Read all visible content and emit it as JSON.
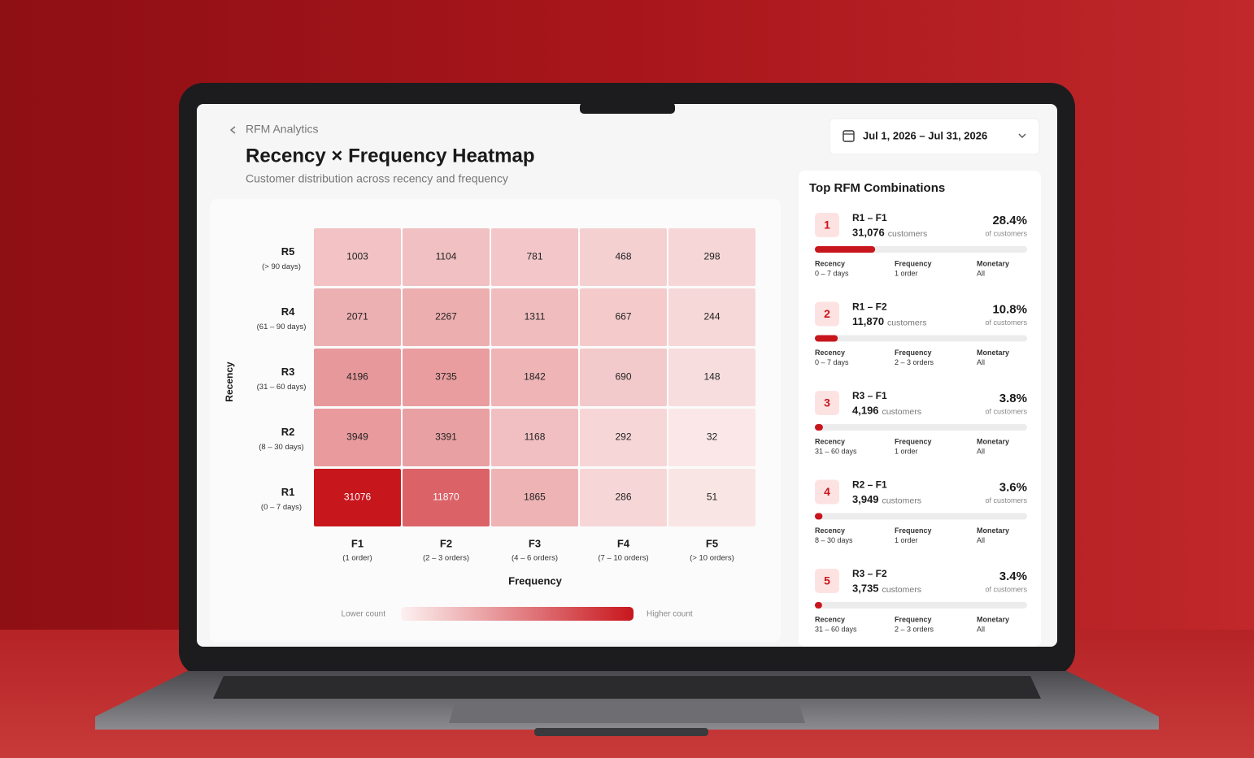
{
  "breadcrumb": "RFM Analytics",
  "date_range": "Jul 1, 2026 – Jul 31, 2026",
  "chart_data": {
    "type": "heatmap",
    "title": "Recency × Frequency Heatmap",
    "subtitle": "Customer distribution across recency and frequency",
    "x_label": "Frequency",
    "y_label": "Recency",
    "x_categories": [
      "F1",
      "F2",
      "F3",
      "F4",
      "F5"
    ],
    "x_sublabels": [
      "(1 order)",
      "(2 – 3 orders)",
      "(4 – 6 orders)",
      "(7 – 10 orders)",
      "(> 10 orders)"
    ],
    "y_categories": [
      "R5",
      "R4",
      "R3",
      "R2",
      "R1"
    ],
    "y_sublabels": [
      "(> 90 days)",
      "(61 – 90 days)",
      "(31 – 60 days)",
      "(8 – 30 days)",
      "(0 – 7 days)"
    ],
    "values": [
      [
        1003,
        1104,
        781,
        468,
        298
      ],
      [
        2071,
        2267,
        1311,
        667,
        244
      ],
      [
        4196,
        3735,
        1842,
        690,
        148
      ],
      [
        3949,
        3391,
        1168,
        292,
        32
      ],
      [
        31076,
        11870,
        1865,
        286,
        51
      ]
    ],
    "color": "#c8161d",
    "low_color": "#fdf1f1",
    "legend_low": "Lower count",
    "legend_high": "Higher count"
  },
  "top_combinations": {
    "title": "Top RFM Combinations",
    "items": [
      {
        "rank": 1,
        "name": "R1 – F1",
        "customers": "31,076",
        "customers_unit": "customers",
        "share": 28.4,
        "share_label": "28.4%",
        "share_note": "of customers",
        "recency_label": "Recency",
        "recency": "0 – 7 days",
        "frequency_label": "Frequency",
        "frequency": "1 order",
        "monetary_label": "Monetary",
        "monetary": "All"
      },
      {
        "rank": 2,
        "name": "R1 – F2",
        "customers": "11,870",
        "customers_unit": "customers",
        "share": 10.8,
        "share_label": "10.8%",
        "share_note": "of customers",
        "recency_label": "Recency",
        "recency": "0 – 7 days",
        "frequency_label": "Frequency",
        "frequency": "2 – 3 orders",
        "monetary_label": "Monetary",
        "monetary": "All"
      },
      {
        "rank": 3,
        "name": "R3 – F1",
        "customers": "4,196",
        "customers_unit": "customers",
        "share": 3.8,
        "share_label": "3.8%",
        "share_note": "of customers",
        "recency_label": "Recency",
        "recency": "31 – 60 days",
        "frequency_label": "Frequency",
        "frequency": "1 order",
        "monetary_label": "Monetary",
        "monetary": "All"
      },
      {
        "rank": 4,
        "name": "R2 – F1",
        "customers": "3,949",
        "customers_unit": "customers",
        "share": 3.6,
        "share_label": "3.6%",
        "share_note": "of customers",
        "recency_label": "Recency",
        "recency": "8 – 30 days",
        "frequency_label": "Frequency",
        "frequency": "1 order",
        "monetary_label": "Monetary",
        "monetary": "All"
      },
      {
        "rank": 5,
        "name": "R3 – F2",
        "customers": "3,735",
        "customers_unit": "customers",
        "share": 3.4,
        "share_label": "3.4%",
        "share_note": "of customers",
        "recency_label": "Recency",
        "recency": "31 – 60 days",
        "frequency_label": "Frequency",
        "frequency": "2 – 3 orders",
        "monetary_label": "Monetary",
        "monetary": "All"
      }
    ]
  }
}
